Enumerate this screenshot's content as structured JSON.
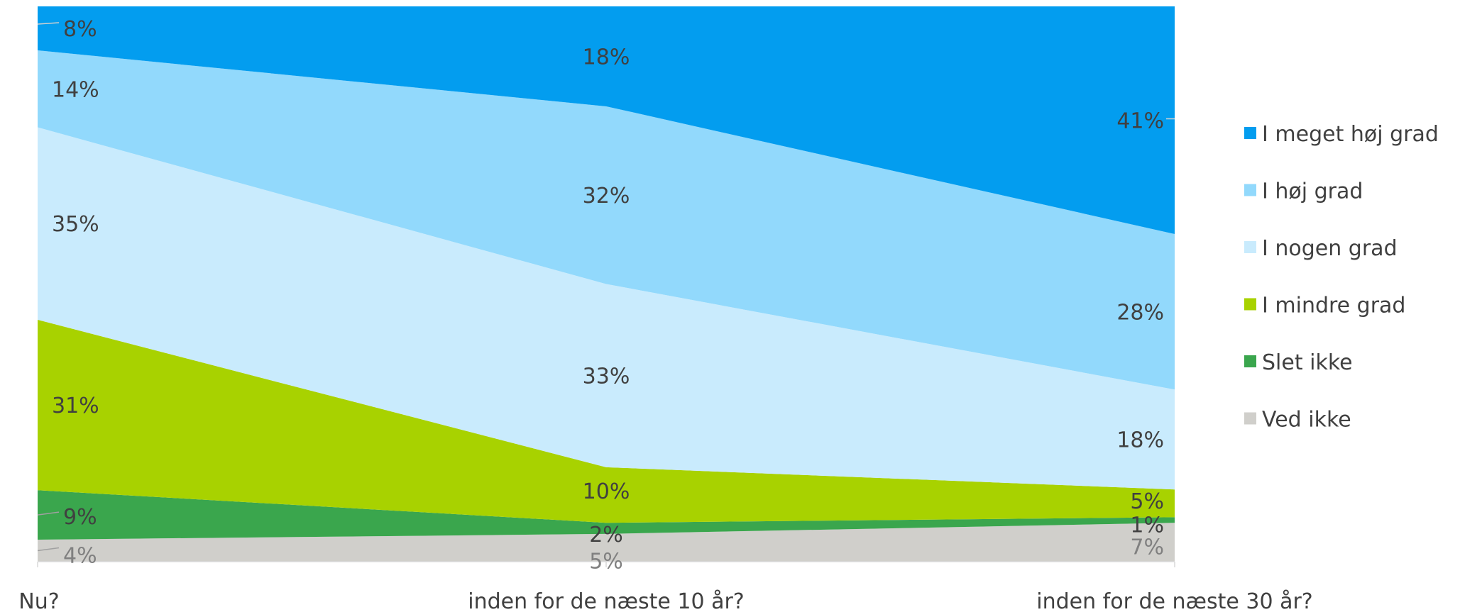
{
  "chart_data": {
    "type": "area",
    "stacked": "percent",
    "categories": [
      "Nu?",
      "inden for de næste 10 år?",
      "inden for de næste 30 år?"
    ],
    "series": [
      {
        "name": "Ved ikke",
        "values": [
          4,
          5,
          7
        ],
        "color": "#d0cfcb",
        "labels": [
          "4%",
          "5%",
          "7%"
        ]
      },
      {
        "name": "Slet ikke",
        "values": [
          9,
          2,
          1
        ],
        "color": "#3aa64d",
        "labels": [
          "9%",
          "2%",
          "1%"
        ]
      },
      {
        "name": "I mindre grad",
        "values": [
          31,
          10,
          5
        ],
        "color": "#a8d200",
        "labels": [
          "31%",
          "10%",
          "5%"
        ]
      },
      {
        "name": "I nogen grad",
        "values": [
          35,
          33,
          18
        ],
        "color": "#c9ebfd",
        "labels": [
          "35%",
          "33%",
          "18%"
        ]
      },
      {
        "name": "I høj grad",
        "values": [
          14,
          32,
          28
        ],
        "color": "#92d9fc",
        "labels": [
          "14%",
          "32%",
          "28%"
        ]
      },
      {
        "name": "I meget høj grad",
        "values": [
          8,
          18,
          41
        ],
        "color": "#039def",
        "labels": [
          "8%",
          "18%",
          "41%"
        ]
      }
    ],
    "legend": {
      "position": "right",
      "entries": [
        "I meget høj grad",
        "I høj grad",
        "I nogen grad",
        "I mindre grad",
        "Slet ikke",
        "Ved ikke"
      ]
    },
    "grid": false
  }
}
